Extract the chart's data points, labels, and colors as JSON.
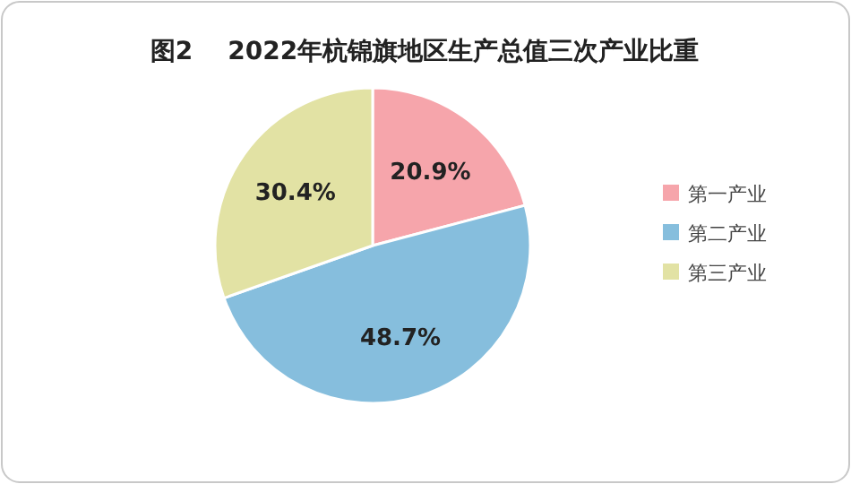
{
  "chart_data": {
    "type": "pie",
    "title": "图2    2022年杭锦旗地区生产总值三次产业比重",
    "categories": [
      "第一产业",
      "第二产业",
      "第三产业"
    ],
    "values": [
      20.9,
      48.7,
      30.4
    ],
    "colors": [
      "#f6a5ab",
      "#86bedd",
      "#e2e2a4"
    ],
    "value_labels": [
      "20.9%",
      "48.7%",
      "30.4%"
    ],
    "legend": "right"
  }
}
